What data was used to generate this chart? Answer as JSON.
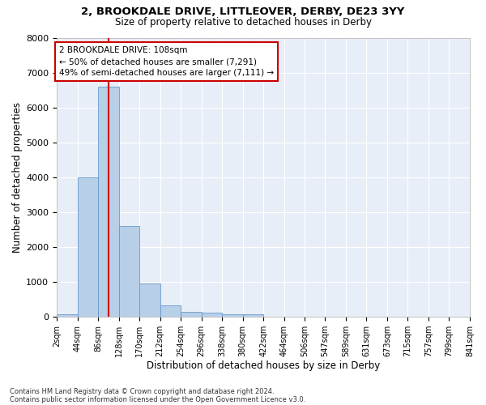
{
  "title1": "2, BROOKDALE DRIVE, LITTLEOVER, DERBY, DE23 3YY",
  "title2": "Size of property relative to detached houses in Derby",
  "xlabel": "Distribution of detached houses by size in Derby",
  "ylabel": "Number of detached properties",
  "footnote1": "Contains HM Land Registry data © Crown copyright and database right 2024.",
  "footnote2": "Contains public sector information licensed under the Open Government Licence v3.0.",
  "annotation_line1": "2 BROOKDALE DRIVE: 108sqm",
  "annotation_line2": "← 50% of detached houses are smaller (7,291)",
  "annotation_line3": "49% of semi-detached houses are larger (7,111) →",
  "vline_x": 108,
  "bar_edges": [
    2,
    44,
    86,
    128,
    170,
    212,
    254,
    296,
    338,
    380,
    422,
    464,
    506,
    547,
    589,
    631,
    673,
    715,
    757,
    799,
    841
  ],
  "bar_heights": [
    70,
    4000,
    6600,
    2600,
    950,
    330,
    140,
    120,
    70,
    70,
    0,
    0,
    0,
    0,
    0,
    0,
    0,
    0,
    0,
    0
  ],
  "bar_color": "#b8cfe8",
  "bar_edge_color": "#6699cc",
  "vline_color": "#cc0000",
  "box_edge_color": "#cc0000",
  "bg_color": "#e8eef8",
  "grid_color": "#ffffff",
  "fig_bg_color": "#ffffff",
  "ylim": [
    0,
    8000
  ],
  "yticks": [
    0,
    1000,
    2000,
    3000,
    4000,
    5000,
    6000,
    7000,
    8000
  ],
  "tick_labels": [
    "2sqm",
    "44sqm",
    "86sqm",
    "128sqm",
    "170sqm",
    "212sqm",
    "254sqm",
    "296sqm",
    "338sqm",
    "380sqm",
    "422sqm",
    "464sqm",
    "506sqm",
    "547sqm",
    "589sqm",
    "631sqm",
    "673sqm",
    "715sqm",
    "757sqm",
    "799sqm",
    "841sqm"
  ]
}
